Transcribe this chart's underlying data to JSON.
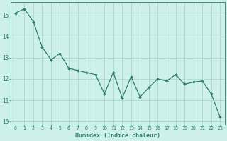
{
  "x": [
    0,
    1,
    2,
    3,
    4,
    5,
    6,
    7,
    8,
    9,
    10,
    11,
    12,
    13,
    14,
    15,
    16,
    17,
    18,
    19,
    20,
    21,
    22,
    23
  ],
  "y": [
    15.1,
    15.3,
    14.7,
    13.5,
    12.9,
    13.2,
    12.5,
    12.4,
    12.3,
    12.2,
    11.3,
    12.3,
    11.1,
    12.1,
    11.15,
    11.6,
    12.0,
    11.9,
    12.2,
    11.75,
    11.85,
    11.9,
    11.3,
    10.2
  ],
  "xlabel": "Humidex (Indice chaleur)",
  "line_color": "#2e7d6e",
  "marker_color": "#2e7d6e",
  "bg_color": "#cef0ea",
  "grid_color": "#aad8d0",
  "axes_color": "#2e7d6e",
  "tick_color": "#2e7d6e",
  "xlim": [
    -0.5,
    23.5
  ],
  "ylim": [
    9.85,
    15.6
  ],
  "yticks": [
    10,
    11,
    12,
    13,
    14,
    15
  ],
  "xticks": [
    0,
    1,
    2,
    3,
    4,
    5,
    6,
    7,
    8,
    9,
    10,
    11,
    12,
    13,
    14,
    15,
    16,
    17,
    18,
    19,
    20,
    21,
    22,
    23
  ]
}
